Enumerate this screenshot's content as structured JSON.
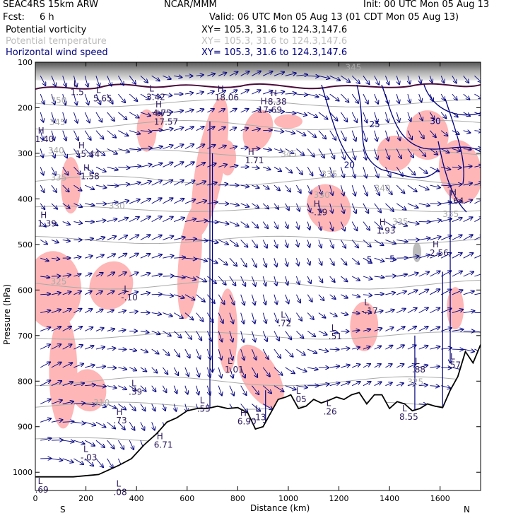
{
  "header": {
    "model": "SEAC4RS 15km ARW",
    "org": "NCAR/MMM",
    "init": "Init: 00 UTC Mon 05 Aug 13",
    "fcst_label": "Fcst:",
    "fcst_value": "6 h",
    "valid": "Valid: 06 UTC Mon 05 Aug 13 (01 CDT Mon 05 Aug 13)"
  },
  "fields": [
    {
      "name": "Potential vorticity",
      "xy": "XY= 105.3, 31.6 to 124.3,147.6"
    },
    {
      "name": "Potential temperature",
      "xy": "XY= 105.3, 31.6 to 124.3,147.6"
    },
    {
      "name": "Horizontal wind speed",
      "xy": "XY= 105.3, 31.6 to 124.3,147.6"
    }
  ],
  "colors": {
    "pv_fill": "#ffb6b6",
    "theta": "#aaaaaa",
    "wind": "#000080",
    "extrema": "#2b1a5c",
    "terrain": "#000000",
    "pv_contour": "#4a0a3a"
  },
  "chart_data": {
    "type": "cross-section",
    "xlabel": "Distance (km)",
    "ylabel": "Pressure (hPa)",
    "xlim": [
      0,
      1760
    ],
    "ylim": [
      1040,
      100
    ],
    "x_ticks": [
      0,
      200,
      400,
      600,
      800,
      1000,
      1200,
      1400,
      1600
    ],
    "y_ticks": [
      100,
      200,
      300,
      400,
      500,
      600,
      700,
      800,
      900,
      1000
    ],
    "endpoints": {
      "left": "S",
      "right": "N"
    },
    "theta_labels": [
      {
        "text": "350",
        "x": 60,
        "p": 190
      },
      {
        "text": "345",
        "x": 55,
        "p": 238
      },
      {
        "text": "340",
        "x": 50,
        "p": 300
      },
      {
        "text": "335",
        "x": 60,
        "p": 360
      },
      {
        "text": "330",
        "x": 290,
        "p": 422
      },
      {
        "text": "325",
        "x": 60,
        "p": 588
      },
      {
        "text": "310",
        "x": 230,
        "p": 854
      },
      {
        "text": "345",
        "x": 970,
        "p": 308
      },
      {
        "text": "330",
        "x": 1100,
        "p": 398
      },
      {
        "text": "340",
        "x": 1340,
        "p": 383
      },
      {
        "text": "335",
        "x": 1410,
        "p": 457
      },
      {
        "text": "325",
        "x": 1470,
        "p": 808
      },
      {
        "text": "345",
        "x": 1225,
        "p": 118
      },
      {
        "text": "335",
        "x": 1130,
        "p": 352
      },
      {
        "text": "335",
        "x": 1610,
        "p": 440
      }
    ],
    "wind_labels": [
      {
        "text": "25",
        "x": 1320,
        "p": 243
      },
      {
        "text": "30",
        "x": 1560,
        "p": 236
      },
      {
        "text": "20",
        "x": 1220,
        "p": 332
      },
      {
        "text": "5",
        "x": 1400,
        "p": 538
      },
      {
        "text": "5",
        "x": 1310,
        "p": 540
      }
    ],
    "extrema": [
      {
        "type": "L",
        "value": "1.5",
        "x": 150,
        "p": 172
      },
      {
        "type": "L",
        "value": "5.65",
        "x": 240,
        "p": 186
      },
      {
        "type": "L",
        "value": "3.42",
        "x": 450,
        "p": 183
      },
      {
        "type": "H",
        "value": "18.06",
        "x": 720,
        "p": 184
      },
      {
        "type": "H",
        "value": "8.38",
        "x": 930,
        "p": 193
      },
      {
        "type": "H",
        "value": "17.69",
        "x": 890,
        "p": 211
      },
      {
        "type": "H",
        "value": "4.75",
        "x": 475,
        "p": 218
      },
      {
        "type": "H",
        "value": "17.57",
        "x": 480,
        "p": 237
      },
      {
        "type": "H",
        "value": "1.40",
        "x": 10,
        "p": 275
      },
      {
        "type": "H",
        "value": "15.44",
        "x": 170,
        "p": 308
      },
      {
        "type": "H",
        "value": "1.71",
        "x": 840,
        "p": 322
      },
      {
        "type": "H",
        "value": "1.58",
        "x": 190,
        "p": 357
      },
      {
        "type": "H",
        "value": "1.39",
        "x": 20,
        "p": 461
      },
      {
        "type": "H",
        "value": "-.19",
        "x": 1100,
        "p": 436
      },
      {
        "type": "H",
        "value": "1.93",
        "x": 1360,
        "p": 476
      },
      {
        "type": "H",
        "value": "2.56",
        "x": 1570,
        "p": 525
      },
      {
        "type": "H",
        "value": "-.64",
        "x": 1640,
        "p": 411
      },
      {
        "type": "L",
        "value": "-.10",
        "x": 350,
        "p": 623
      },
      {
        "type": "L",
        "value": ".72",
        "x": 970,
        "p": 679
      },
      {
        "type": "L",
        "value": ".51",
        "x": 1170,
        "p": 708
      },
      {
        "type": "L",
        "value": "-.17",
        "x": 1300,
        "p": 652
      },
      {
        "type": "L",
        "value": "1.01",
        "x": 760,
        "p": 781
      },
      {
        "type": "L",
        "value": ".88",
        "x": 1500,
        "p": 781
      },
      {
        "type": "L",
        "value": ".57",
        "x": 1640,
        "p": 771
      },
      {
        "type": "L",
        "value": ".39",
        "x": 380,
        "p": 830
      },
      {
        "type": "L",
        "value": ".55",
        "x": 650,
        "p": 867
      },
      {
        "type": "L",
        "value": ".13",
        "x": 870,
        "p": 886
      },
      {
        "type": "L",
        "value": ".05",
        "x": 1030,
        "p": 846
      },
      {
        "type": "L",
        "value": ".26",
        "x": 1150,
        "p": 873
      },
      {
        "type": "L",
        "value": "8.55",
        "x": 1450,
        "p": 885
      },
      {
        "type": "H",
        "value": ".73",
        "x": 320,
        "p": 893
      },
      {
        "type": "H",
        "value": "6.90",
        "x": 810,
        "p": 895
      },
      {
        "type": "H",
        "value": "6.71",
        "x": 480,
        "p": 946
      },
      {
        "type": "L",
        "value": "-.03",
        "x": 190,
        "p": 974
      },
      {
        "type": "L",
        "value": ".08",
        "x": 320,
        "p": 1050
      },
      {
        "type": "L",
        "value": ".69",
        "x": 10,
        "p": 1045
      }
    ]
  }
}
